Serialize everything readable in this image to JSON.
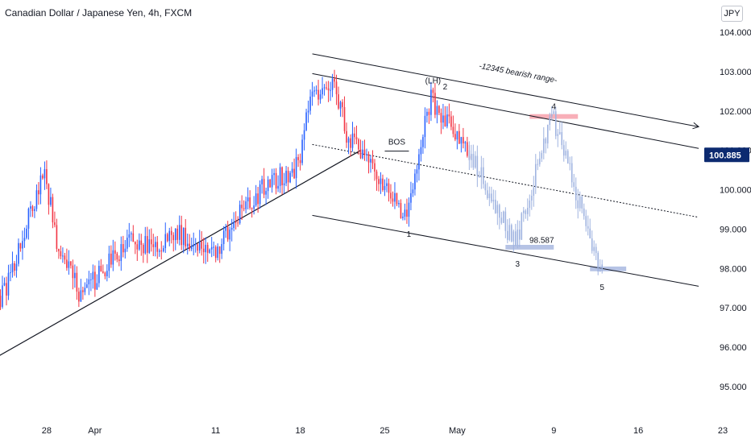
{
  "title": "Canadian Dollar / Japanese Yen, 4h, FXCM",
  "currency_button": "JPY",
  "colors": {
    "up": "#2962ff",
    "down": "#f23645",
    "projection": "#9fb3e0",
    "price_tag": "#0c2a70",
    "resistance_zone": "#f7a1ab",
    "support_zone": "#a9b9e0",
    "line": "#131722"
  },
  "chart_data": {
    "type": "candlestick",
    "y_axis": {
      "side": "right",
      "ylim": [
        94.55,
        104.45
      ],
      "ticks": [
        "104.000",
        "103.000",
        "102.000",
        "101.000",
        "100.000",
        "99.000",
        "98.000",
        "97.000",
        "96.000",
        "95.000"
      ],
      "tick_values": [
        104,
        103,
        102,
        101,
        100,
        99,
        98,
        97,
        96,
        95
      ]
    },
    "x_axis": {
      "xlim": [
        "2022-03-23",
        "2022-05-25"
      ],
      "ticks": [
        {
          "label": "28",
          "date": "2022-03-28"
        },
        {
          "label": "Apr",
          "date": "2022-04-01"
        },
        {
          "label": "11",
          "date": "2022-04-11"
        },
        {
          "label": "18",
          "date": "2022-04-18"
        },
        {
          "label": "25",
          "date": "2022-04-25"
        },
        {
          "label": "May",
          "date": "2022-05-01"
        },
        {
          "label": "9",
          "date": "2022-05-09"
        },
        {
          "label": "16",
          "date": "2022-05-16"
        },
        {
          "label": "23",
          "date": "2022-05-23"
        }
      ]
    },
    "current_price": {
      "label": "100.885",
      "value": 100.885
    },
    "price_path": [
      {
        "date": "2022-03-23",
        "price": 96.2
      },
      {
        "date": "2022-03-25",
        "price": 97.7
      },
      {
        "date": "2022-03-28",
        "price": 100.5
      },
      {
        "date": "2022-03-29",
        "price": 98.6
      },
      {
        "date": "2022-03-31",
        "price": 97.3
      },
      {
        "date": "2022-04-04",
        "price": 98.7
      },
      {
        "date": "2022-04-06",
        "price": 98.5
      },
      {
        "date": "2022-04-08",
        "price": 98.9
      },
      {
        "date": "2022-04-11",
        "price": 98.4
      },
      {
        "date": "2022-04-13",
        "price": 99.3
      },
      {
        "date": "2022-04-15",
        "price": 100.0
      },
      {
        "date": "2022-04-18",
        "price": 100.6
      },
      {
        "date": "2022-04-19",
        "price": 102.3
      },
      {
        "date": "2022-04-21",
        "price": 102.8
      },
      {
        "date": "2022-04-22",
        "price": 101.4
      },
      {
        "date": "2022-04-25",
        "price": 100.2
      },
      {
        "date": "2022-04-27",
        "price": 99.2
      },
      {
        "date": "2022-04-28",
        "price": 101.0
      },
      {
        "date": "2022-04-29",
        "price": 102.3
      },
      {
        "date": "2022-05-02",
        "price": 101.0
      }
    ],
    "projection_path": [
      {
        "date": "2022-05-02",
        "price": 101.0
      },
      {
        "date": "2022-05-06",
        "price": 98.6
      },
      {
        "date": "2022-05-09",
        "price": 101.9
      },
      {
        "date": "2022-05-13",
        "price": 98.0
      }
    ],
    "annotations": [
      {
        "text": "-12345 bearish range-",
        "date": "2022-05-06",
        "price": 102.9
      },
      {
        "text": "(LH)",
        "date": "2022-04-29",
        "price": 102.7
      },
      {
        "text": "2",
        "date": "2022-04-30",
        "price": 102.55
      },
      {
        "text": "4",
        "date": "2022-05-09",
        "price": 102.05
      },
      {
        "text": "BOS",
        "date": "2022-04-26",
        "price": 101.15
      },
      {
        "text": "1",
        "date": "2022-04-27",
        "price": 98.8
      },
      {
        "text": "98.587",
        "date": "2022-05-08",
        "price": 98.65
      },
      {
        "text": "3",
        "date": "2022-05-06",
        "price": 98.05
      },
      {
        "text": "5",
        "date": "2022-05-13",
        "price": 97.45
      }
    ],
    "lines": [
      {
        "name": "channel-upper-outer",
        "from": {
          "date": "2022-04-19",
          "price": 103.45
        },
        "to": {
          "date": "2022-05-21",
          "price": 101.6
        },
        "arrow": true
      },
      {
        "name": "channel-upper",
        "from": {
          "date": "2022-04-19",
          "price": 102.95
        },
        "to": {
          "date": "2022-05-21",
          "price": 101.05
        }
      },
      {
        "name": "channel-middle",
        "from": {
          "date": "2022-04-19",
          "price": 101.15
        },
        "to": {
          "date": "2022-05-21",
          "price": 99.3
        },
        "dashed": true
      },
      {
        "name": "channel-lower",
        "from": {
          "date": "2022-04-19",
          "price": 99.35
        },
        "to": {
          "date": "2022-05-21",
          "price": 97.55
        }
      },
      {
        "name": "rising-trendline",
        "from": {
          "date": "2022-03-23",
          "price": 95.6
        },
        "to": {
          "date": "2022-04-23",
          "price": 101.0
        }
      },
      {
        "name": "bos-line",
        "from": {
          "date": "2022-04-25",
          "price": 100.98
        },
        "to": {
          "date": "2022-04-27",
          "price": 100.98
        }
      }
    ],
    "zones": [
      {
        "name": "resistance-zone",
        "from": "2022-05-07",
        "to": "2022-05-11",
        "top": 101.92,
        "bottom": 101.8,
        "color_key": "resistance_zone"
      },
      {
        "name": "support-zone-3",
        "from": "2022-05-05",
        "to": "2022-05-09",
        "top": 98.6,
        "bottom": 98.48,
        "color_key": "support_zone"
      },
      {
        "name": "support-zone-5",
        "from": "2022-05-12",
        "to": "2022-05-15",
        "top": 98.05,
        "bottom": 97.93,
        "color_key": "support_zone"
      }
    ]
  }
}
